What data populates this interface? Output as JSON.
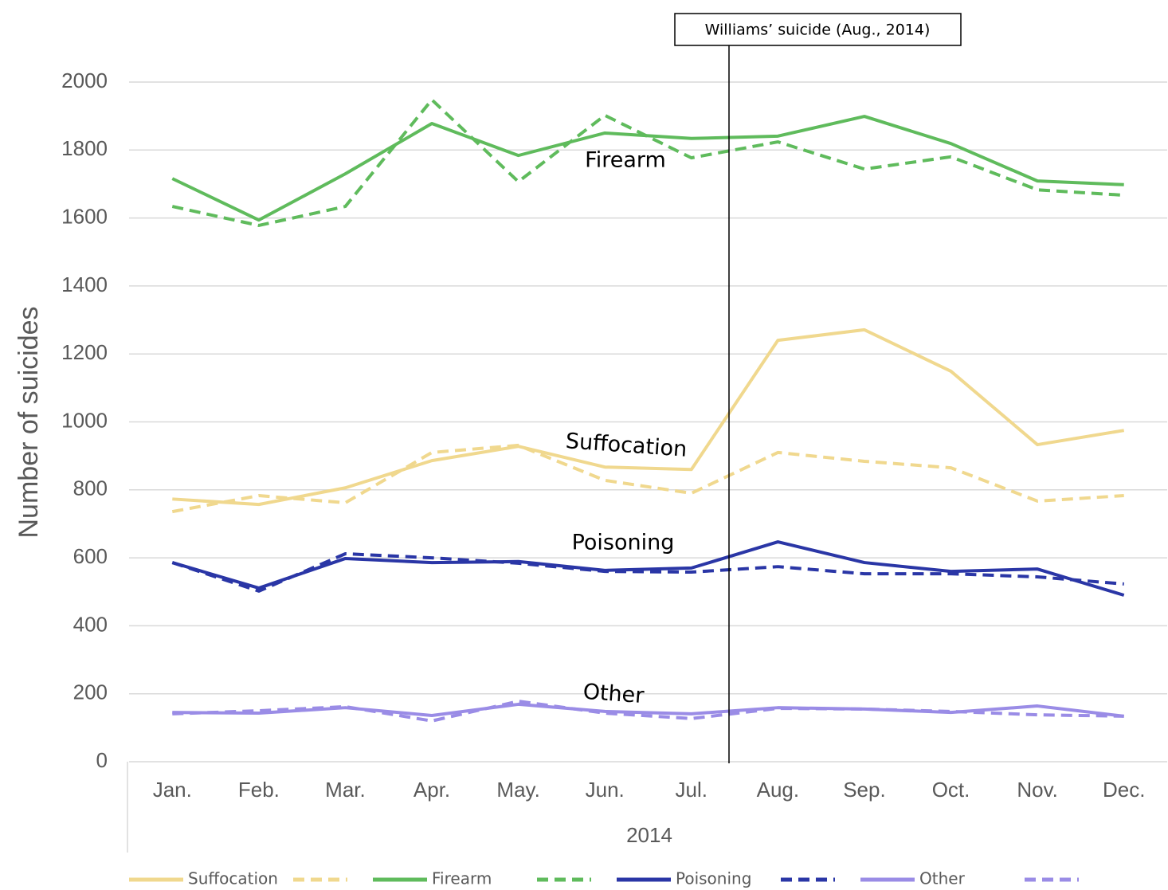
{
  "chart_data": {
    "type": "line",
    "ylabel": "Number of suicides",
    "xlabel": "2014",
    "annotation": "Williams’ suicide (Aug., 2014)",
    "categories": [
      "Jan.",
      "Feb.",
      "Mar.",
      "Apr.",
      "May.",
      "Jun.",
      "Jul.",
      "Aug.",
      "Sep.",
      "Oct.",
      "Nov.",
      "Dec."
    ],
    "ylim": [
      0,
      2000
    ],
    "yticks": [
      0,
      200,
      400,
      600,
      800,
      1000,
      1200,
      1400,
      1600,
      1800,
      2000
    ],
    "grid": true,
    "legend": "bottom",
    "series": [
      {
        "name": "Suffocation",
        "color": "#f0d88e",
        "dashed": false,
        "values": [
          773,
          757,
          806,
          886,
          928,
          867,
          860,
          1240,
          1271,
          1149,
          933,
          975
        ]
      },
      {
        "color": "#f0d88e",
        "dashed": true,
        "values": [
          736,
          783,
          762,
          910,
          931,
          828,
          790,
          910,
          884,
          865,
          767,
          783
        ]
      },
      {
        "name": "Firearm",
        "color": "#5fbb5c",
        "dashed": false,
        "values": [
          1716,
          1594,
          1730,
          1878,
          1784,
          1850,
          1834,
          1841,
          1899,
          1819,
          1709,
          1698
        ]
      },
      {
        "color": "#5fbb5c",
        "dashed": true,
        "values": [
          1634,
          1578,
          1634,
          1948,
          1707,
          1902,
          1777,
          1824,
          1744,
          1780,
          1683,
          1667
        ]
      },
      {
        "name": "Poisoning",
        "color": "#2a36a6",
        "dashed": false,
        "values": [
          586,
          511,
          598,
          586,
          589,
          563,
          570,
          647,
          586,
          560,
          567,
          490
        ]
      },
      {
        "color": "#2a36a6",
        "dashed": true,
        "values": [
          586,
          502,
          612,
          600,
          584,
          560,
          558,
          574,
          553,
          553,
          544,
          523
        ]
      },
      {
        "name": "Other",
        "color": "#9a8ce6",
        "dashed": false,
        "values": [
          145,
          143,
          159,
          136,
          169,
          148,
          141,
          159,
          155,
          145,
          164,
          134
        ]
      },
      {
        "color": "#9a8ce6",
        "dashed": true,
        "values": [
          141,
          150,
          162,
          120,
          178,
          143,
          127,
          157,
          155,
          148,
          138,
          134
        ]
      }
    ]
  }
}
